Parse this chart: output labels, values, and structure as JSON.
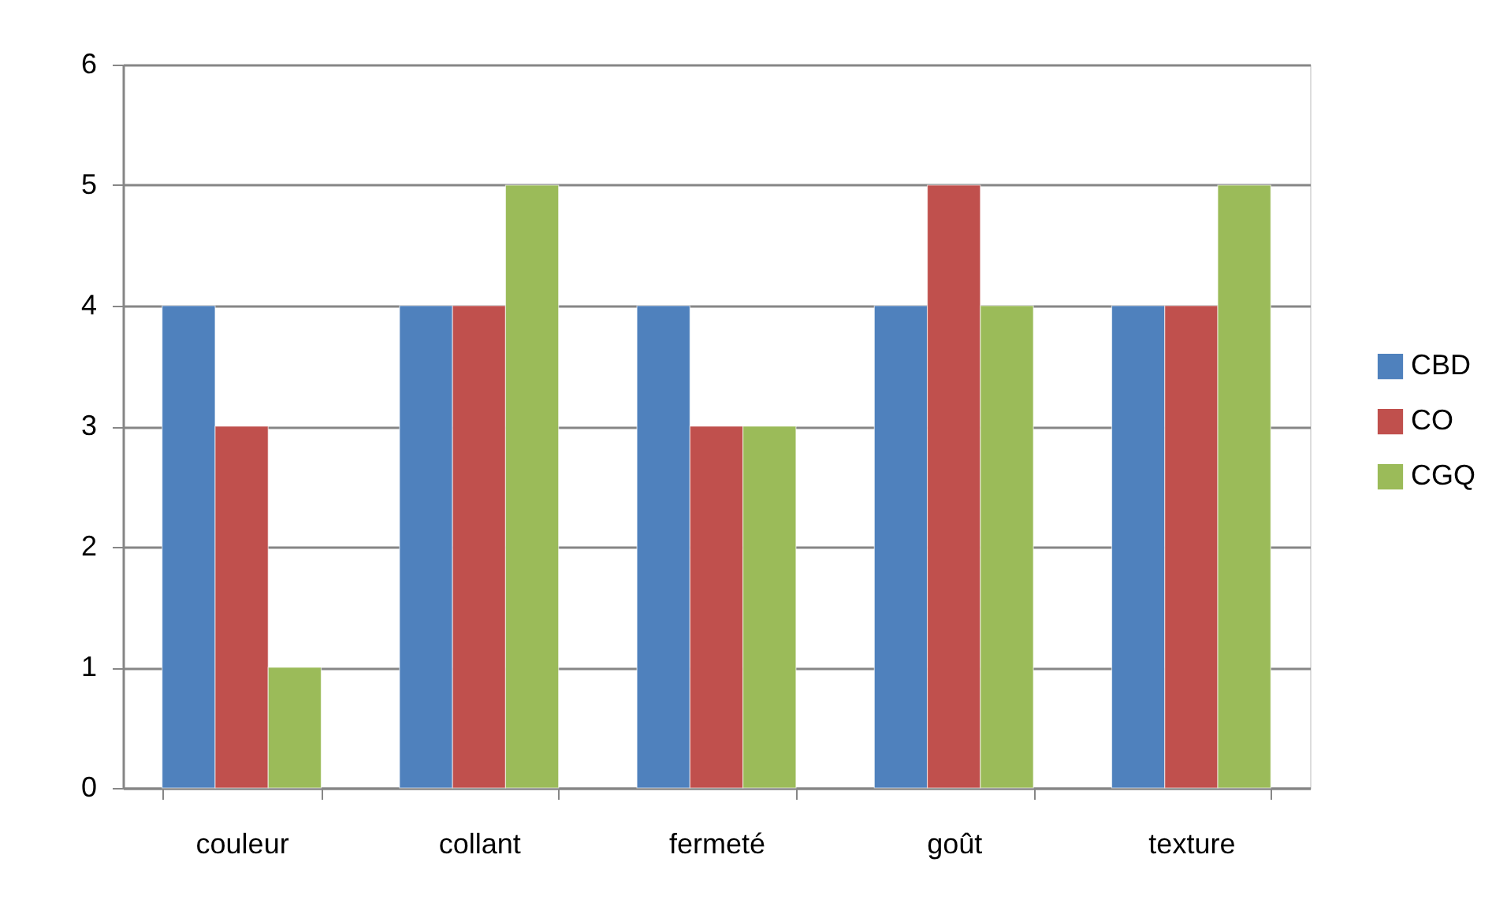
{
  "chart_data": {
    "type": "bar",
    "categories": [
      "couleur",
      "collant",
      "fermeté",
      "goût",
      "texture"
    ],
    "series": [
      {
        "name": "CBD",
        "color": "#4f81bd",
        "values": [
          4,
          4,
          4,
          4,
          4
        ]
      },
      {
        "name": "CO",
        "color": "#c0504d",
        "values": [
          3,
          4,
          3,
          5,
          4
        ]
      },
      {
        "name": "CGQ",
        "color": "#9bbb59",
        "values": [
          1,
          5,
          3,
          4,
          5
        ]
      }
    ],
    "ylim": [
      0,
      6
    ],
    "yticks": [
      0,
      1,
      2,
      3,
      4,
      5,
      6
    ],
    "grid": "y",
    "legend": "right"
  }
}
